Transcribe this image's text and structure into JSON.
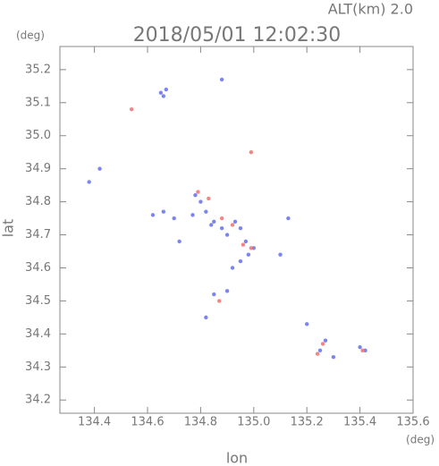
{
  "chart_data": {
    "type": "scatter",
    "title": "2018/05/01 12:02:30",
    "annotation": "ALT(km) 2.0",
    "x_label": "lon",
    "y_label": "lat",
    "x_unit": "(deg)",
    "y_unit": "(deg)",
    "xlim": [
      134.27,
      135.6
    ],
    "ylim": [
      34.16,
      35.27
    ],
    "xticks": [
      134.4,
      134.6,
      134.8,
      {
        "value": 135,
        "label": "135.0"
      },
      135.2,
      135.4,
      135.6
    ],
    "yticks": [
      34.2,
      34.3,
      34.4,
      34.5,
      34.6,
      34.7,
      34.8,
      34.9,
      {
        "value": 35,
        "label": "35.0"
      },
      35.1,
      35.2
    ],
    "series": [
      {
        "color": "#6470f0",
        "x": [
          134.65,
          134.67,
          134.66,
          134.88,
          134.38,
          134.42,
          134.62,
          134.66,
          134.7,
          134.78,
          134.8,
          134.82,
          134.85,
          134.88,
          134.9,
          134.93,
          134.95,
          134.97,
          135.0,
          134.98,
          134.95,
          134.92,
          134.85,
          134.9,
          134.82,
          135.13,
          135.1,
          135.2,
          135.25,
          135.27,
          135.3,
          135.4,
          135.42,
          134.77,
          134.72,
          134.84
        ],
        "y": [
          35.13,
          35.14,
          35.12,
          35.17,
          34.86,
          34.9,
          34.76,
          34.77,
          34.75,
          34.82,
          34.8,
          34.77,
          34.74,
          34.72,
          34.7,
          34.74,
          34.72,
          34.68,
          34.66,
          34.64,
          34.62,
          34.6,
          34.52,
          34.53,
          34.45,
          34.75,
          34.64,
          34.43,
          34.35,
          34.38,
          34.33,
          34.36,
          34.35,
          34.76,
          34.68,
          34.73
        ]
      },
      {
        "color": "#f07070",
        "x": [
          134.54,
          134.99,
          134.79,
          134.83,
          134.88,
          134.92,
          134.96,
          134.99,
          134.87,
          135.26,
          135.24,
          135.41
        ],
        "y": [
          35.08,
          34.95,
          34.83,
          34.81,
          34.75,
          34.73,
          34.67,
          34.66,
          34.5,
          34.37,
          34.34,
          34.35
        ]
      }
    ]
  }
}
